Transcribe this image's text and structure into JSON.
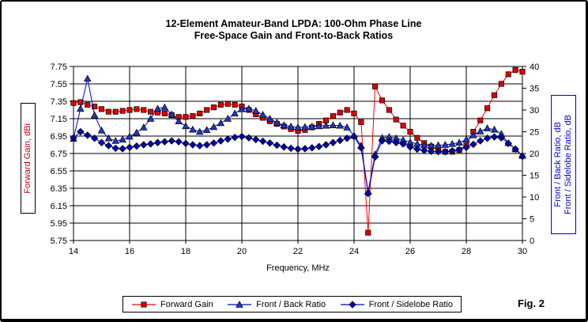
{
  "figure": {
    "fig_label": "Fig. 2"
  },
  "chart_data": {
    "type": "line",
    "title_line1": "12-Element Amateur-Band LPDA: 100-Ohm Phase Line",
    "title_line2": "Free-Space Gain and Front-to-Back Ratios",
    "xlabel": "Frequency, MHz",
    "ylabel_left": "Forward Gain,  dBi",
    "ylabel_right_line1": "Front / Back Ratio,  dB",
    "ylabel_right_line2": "Front / Sidelobe Ratio,  dB",
    "grid": true,
    "legend_position": "bottom",
    "x_range": [
      14,
      30
    ],
    "x_start": 14,
    "x_step": 0.25,
    "x_ticks": [
      "14",
      "16",
      "18",
      "20",
      "22",
      "24",
      "26",
      "28",
      "30"
    ],
    "y_left_range": [
      5.75,
      7.75
    ],
    "y_left_ticks": [
      "7.75",
      "7.55",
      "7.35",
      "7.15",
      "6.95",
      "6.75",
      "6.55",
      "6.35",
      "6.15",
      "5.95",
      "5.75"
    ],
    "y_right_range": [
      0,
      40
    ],
    "y_right_ticks": [
      "40",
      "35",
      "30",
      "25",
      "20",
      "15",
      "10",
      "5",
      "0"
    ],
    "series": [
      {
        "name": "Forward Gain",
        "axis": "left",
        "line_color": "#ff0000",
        "marker": "square",
        "marker_color": "#dd0000",
        "values": [
          7.33,
          7.34,
          7.31,
          7.29,
          7.26,
          7.23,
          7.23,
          7.24,
          7.25,
          7.26,
          7.25,
          7.23,
          7.22,
          7.21,
          7.19,
          7.17,
          7.17,
          7.18,
          7.21,
          7.25,
          7.28,
          7.31,
          7.32,
          7.31,
          7.29,
          7.25,
          7.2,
          7.16,
          7.12,
          7.09,
          7.06,
          7.03,
          7.01,
          7.02,
          7.05,
          7.09,
          7.13,
          7.18,
          7.22,
          7.25,
          7.21,
          7.11,
          5.84,
          7.52,
          7.36,
          7.25,
          7.14,
          7.07,
          7.0,
          6.93,
          6.87,
          6.83,
          6.79,
          6.77,
          6.77,
          6.79,
          6.84,
          7.0,
          7.13,
          7.27,
          7.42,
          7.55,
          7.66,
          7.71,
          7.69
        ]
      },
      {
        "name": "Front / Back Ratio",
        "axis": "right",
        "line_color": "#0000cc",
        "marker": "triangle",
        "marker_color": "#2038c0",
        "values": [
          23.4,
          30.3,
          37.2,
          28.8,
          25.3,
          23.5,
          22.9,
          23.2,
          23.9,
          24.8,
          26.0,
          28.0,
          30.3,
          30.6,
          29.0,
          27.4,
          26.3,
          25.5,
          25.0,
          25.4,
          26.1,
          27.0,
          28.0,
          29.2,
          30.2,
          30.3,
          29.8,
          28.9,
          28.0,
          27.1,
          26.5,
          26.2,
          26.0,
          26.1,
          26.2,
          26.3,
          26.4,
          26.5,
          26.4,
          26.0,
          24.1,
          21.8,
          11.2,
          19.8,
          23.6,
          23.8,
          23.5,
          23.1,
          22.6,
          22.2,
          21.9,
          21.8,
          21.9,
          22.0,
          22.2,
          22.5,
          23.2,
          24.2,
          25.1,
          25.8,
          25.5,
          24.5,
          22.4,
          21.0,
          19.5
        ]
      },
      {
        "name": "Front / Sidelobe Ratio",
        "axis": "right",
        "line_color": "#0000cc",
        "marker": "diamond",
        "marker_color": "#0000b0",
        "values": [
          23.6,
          25.0,
          24.2,
          23.5,
          22.5,
          21.8,
          21.2,
          21.1,
          21.4,
          21.7,
          22.0,
          22.2,
          22.5,
          22.7,
          22.9,
          22.7,
          22.3,
          22.0,
          21.8,
          22.0,
          22.4,
          22.9,
          23.3,
          23.7,
          23.9,
          23.6,
          23.2,
          22.8,
          22.4,
          21.9,
          21.5,
          21.2,
          21.0,
          21.1,
          21.3,
          21.6,
          22.0,
          22.5,
          23.0,
          23.5,
          23.9,
          21.3,
          10.8,
          19.2,
          22.9,
          22.8,
          22.5,
          22.2,
          21.5,
          21.0,
          20.7,
          20.5,
          20.4,
          20.4,
          20.6,
          20.9,
          21.4,
          22.1,
          22.9,
          23.5,
          23.8,
          23.6,
          22.3,
          21.0,
          19.3
        ]
      }
    ]
  }
}
